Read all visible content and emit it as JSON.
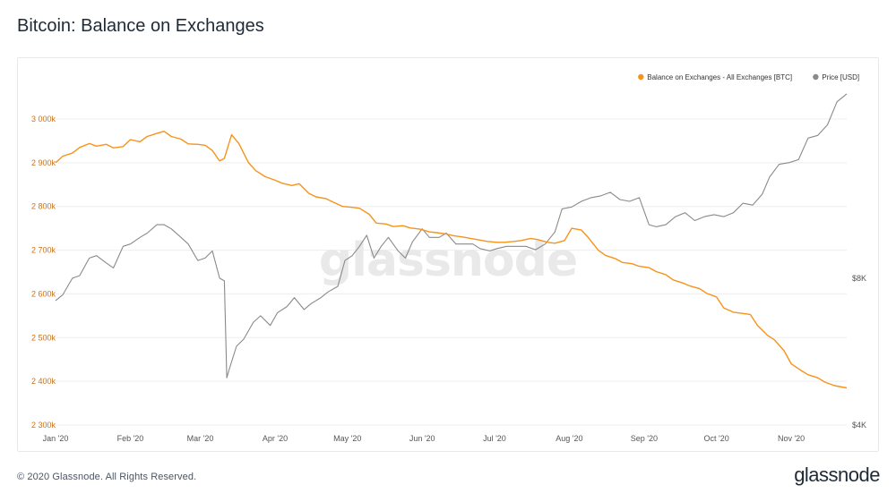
{
  "page": {
    "title": "Bitcoin: Balance on Exchanges",
    "copyright": "© 2020 Glassnode. All Rights Reserved.",
    "brand": "glassnode",
    "watermark": "glassnode"
  },
  "colors": {
    "balance": "#f7931a",
    "price": "#8a8a8a",
    "left_axis_text": "#c9721a",
    "axis_text": "#555555",
    "grid": "#eeeeee",
    "watermark": "#e9e9e9"
  },
  "chart_data": {
    "type": "line",
    "title": "Bitcoin: Balance on Exchanges",
    "legend": {
      "position": "top-right",
      "entries": [
        {
          "key": "balance",
          "label": "Balance on Exchanges - All Exchanges [BTC]",
          "color": "#f7931a"
        },
        {
          "key": "price",
          "label": "Price [USD]",
          "color": "#8a8a8a"
        }
      ]
    },
    "grid": true,
    "x_axis": {
      "ticks": [
        "Jan '20",
        "Feb '20",
        "Mar '20",
        "Apr '20",
        "May '20",
        "Jun '20",
        "Jul '20",
        "Aug '20",
        "Sep '20",
        "Oct '20",
        "Nov '20"
      ],
      "range": [
        "2020-01-01",
        "2020-11-24"
      ]
    },
    "y_left": {
      "label": "",
      "ticks": [
        2300000,
        2400000,
        2500000,
        2600000,
        2700000,
        2800000,
        2900000,
        3000000
      ],
      "tick_labels": [
        "2 300k",
        "2 400k",
        "2 500k",
        "2 600k",
        "2 700k",
        "2 800k",
        "2 900k",
        "3 000k"
      ],
      "range": [
        2300000,
        3000000
      ]
    },
    "y_right": {
      "label": "",
      "scale": "log",
      "ticks": [
        4000,
        8000
      ],
      "tick_labels": [
        "$4K",
        "$8K"
      ],
      "range": [
        4000,
        19500
      ]
    },
    "series": [
      {
        "name": "Balance on Exchanges - All Exchanges [BTC]",
        "axis": "left",
        "x": [
          "2020-01-01",
          "2020-01-04",
          "2020-01-08",
          "2020-01-11",
          "2020-01-15",
          "2020-01-18",
          "2020-01-22",
          "2020-01-25",
          "2020-01-29",
          "2020-02-01",
          "2020-02-05",
          "2020-02-08",
          "2020-02-12",
          "2020-02-15",
          "2020-02-18",
          "2020-02-22",
          "2020-02-25",
          "2020-02-29",
          "2020-03-03",
          "2020-03-06",
          "2020-03-09",
          "2020-03-11",
          "2020-03-14",
          "2020-03-17",
          "2020-03-21",
          "2020-03-24",
          "2020-03-28",
          "2020-04-01",
          "2020-04-04",
          "2020-04-08",
          "2020-04-11",
          "2020-04-15",
          "2020-04-18",
          "2020-04-22",
          "2020-04-25",
          "2020-04-29",
          "2020-05-03",
          "2020-05-06",
          "2020-05-10",
          "2020-05-13",
          "2020-05-17",
          "2020-05-20",
          "2020-05-24",
          "2020-05-27",
          "2020-05-31",
          "2020-06-04",
          "2020-06-07",
          "2020-06-11",
          "2020-06-14",
          "2020-06-18",
          "2020-06-21",
          "2020-06-25",
          "2020-06-28",
          "2020-07-02",
          "2020-07-05",
          "2020-07-09",
          "2020-07-12",
          "2020-07-16",
          "2020-07-19",
          "2020-07-23",
          "2020-07-26",
          "2020-07-30",
          "2020-08-02",
          "2020-08-06",
          "2020-08-09",
          "2020-08-13",
          "2020-08-16",
          "2020-08-20",
          "2020-08-23",
          "2020-08-27",
          "2020-08-30",
          "2020-09-03",
          "2020-09-06",
          "2020-09-10",
          "2020-09-13",
          "2020-09-17",
          "2020-09-20",
          "2020-09-24",
          "2020-09-27",
          "2020-10-01",
          "2020-10-04",
          "2020-10-08",
          "2020-10-11",
          "2020-10-15",
          "2020-10-18",
          "2020-10-22",
          "2020-10-25",
          "2020-10-29",
          "2020-11-01",
          "2020-11-05",
          "2020-11-08",
          "2020-11-12",
          "2020-11-15",
          "2020-11-19",
          "2020-11-24"
        ],
        "values": [
          2900000,
          2915000,
          2922000,
          2935000,
          2944000,
          2938000,
          2942000,
          2934000,
          2937000,
          2953000,
          2948000,
          2960000,
          2967000,
          2972000,
          2960000,
          2954000,
          2943000,
          2942000,
          2940000,
          2928000,
          2904000,
          2910000,
          2964000,
          2944000,
          2900000,
          2882000,
          2868000,
          2860000,
          2853000,
          2848000,
          2852000,
          2830000,
          2822000,
          2818000,
          2810000,
          2800000,
          2798000,
          2796000,
          2782000,
          2762000,
          2760000,
          2754000,
          2756000,
          2751000,
          2748000,
          2742000,
          2740000,
          2737000,
          2733000,
          2730000,
          2727000,
          2723000,
          2720000,
          2718000,
          2718000,
          2720000,
          2722000,
          2727000,
          2724000,
          2718000,
          2716000,
          2722000,
          2750000,
          2746000,
          2728000,
          2700000,
          2688000,
          2681000,
          2672000,
          2669000,
          2663000,
          2660000,
          2651000,
          2644000,
          2632000,
          2625000,
          2618000,
          2612000,
          2601000,
          2593000,
          2568000,
          2558000,
          2556000,
          2553000,
          2528000,
          2506000,
          2495000,
          2470000,
          2440000,
          2425000,
          2415000,
          2408000,
          2398000,
          2390000,
          2385000
        ]
      },
      {
        "name": "Price [USD]",
        "axis": "right",
        "x": [
          "2020-01-01",
          "2020-01-04",
          "2020-01-08",
          "2020-01-11",
          "2020-01-15",
          "2020-01-18",
          "2020-01-22",
          "2020-01-25",
          "2020-01-29",
          "2020-02-01",
          "2020-02-05",
          "2020-02-08",
          "2020-02-12",
          "2020-02-15",
          "2020-02-18",
          "2020-02-22",
          "2020-02-25",
          "2020-02-29",
          "2020-03-03",
          "2020-03-06",
          "2020-03-09",
          "2020-03-11",
          "2020-03-12",
          "2020-03-13",
          "2020-03-16",
          "2020-03-19",
          "2020-03-23",
          "2020-03-26",
          "2020-03-30",
          "2020-04-02",
          "2020-04-06",
          "2020-04-09",
          "2020-04-13",
          "2020-04-16",
          "2020-04-20",
          "2020-04-23",
          "2020-04-27",
          "2020-04-30",
          "2020-05-03",
          "2020-05-06",
          "2020-05-09",
          "2020-05-12",
          "2020-05-15",
          "2020-05-18",
          "2020-05-22",
          "2020-05-25",
          "2020-05-28",
          "2020-06-01",
          "2020-06-04",
          "2020-06-08",
          "2020-06-11",
          "2020-06-15",
          "2020-06-18",
          "2020-06-22",
          "2020-06-25",
          "2020-06-29",
          "2020-07-02",
          "2020-07-06",
          "2020-07-10",
          "2020-07-14",
          "2020-07-18",
          "2020-07-22",
          "2020-07-26",
          "2020-07-29",
          "2020-08-02",
          "2020-08-06",
          "2020-08-10",
          "2020-08-14",
          "2020-08-18",
          "2020-08-22",
          "2020-08-26",
          "2020-08-30",
          "2020-09-03",
          "2020-09-06",
          "2020-09-10",
          "2020-09-14",
          "2020-09-18",
          "2020-09-22",
          "2020-09-26",
          "2020-09-30",
          "2020-10-04",
          "2020-10-08",
          "2020-10-12",
          "2020-10-16",
          "2020-10-20",
          "2020-10-23",
          "2020-10-27",
          "2020-10-31",
          "2020-11-04",
          "2020-11-08",
          "2020-11-12",
          "2020-11-16",
          "2020-11-20",
          "2020-11-24"
        ],
        "values": [
          7200,
          7400,
          8000,
          8100,
          8800,
          8900,
          8600,
          8400,
          9300,
          9400,
          9700,
          9900,
          10300,
          10300,
          10100,
          9700,
          9400,
          8700,
          8800,
          9100,
          8000,
          7900,
          5000,
          5200,
          5800,
          6000,
          6500,
          6700,
          6400,
          6800,
          7000,
          7300,
          6900,
          7100,
          7300,
          7500,
          7700,
          8700,
          8900,
          9300,
          9800,
          8800,
          9300,
          9700,
          9100,
          8800,
          9500,
          10100,
          9700,
          9700,
          9900,
          9400,
          9400,
          9400,
          9200,
          9100,
          9200,
          9300,
          9300,
          9300,
          9150,
          9400,
          9950,
          11100,
          11200,
          11500,
          11700,
          11800,
          12000,
          11600,
          11500,
          11700,
          10300,
          10200,
          10300,
          10700,
          10900,
          10500,
          10700,
          10800,
          10700,
          10900,
          11400,
          11300,
          11900,
          12900,
          13700,
          13800,
          14000,
          15500,
          15700,
          16500,
          18400,
          19100
        ]
      }
    ]
  }
}
